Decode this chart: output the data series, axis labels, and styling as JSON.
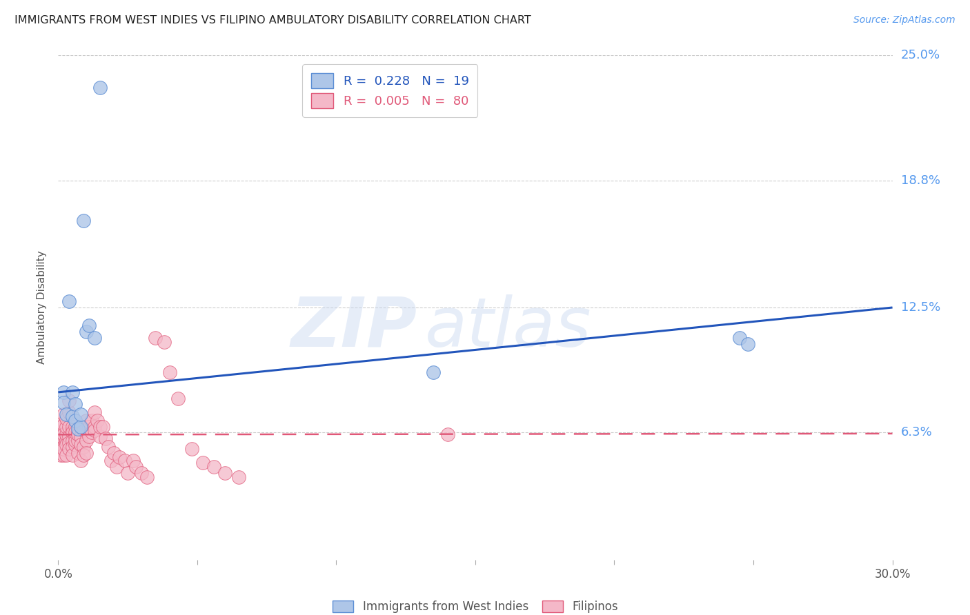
{
  "title": "IMMIGRANTS FROM WEST INDIES VS FILIPINO AMBULATORY DISABILITY CORRELATION CHART",
  "source": "Source: ZipAtlas.com",
  "ylabel": "Ambulatory Disability",
  "legend_label_blue": "Immigrants from West Indies",
  "legend_label_pink": "Filipinos",
  "legend_r_blue": "R =  0.228",
  "legend_n_blue": "N =  19",
  "legend_r_pink": "R =  0.005",
  "legend_n_pink": "N =  80",
  "xlim": [
    0.0,
    0.3
  ],
  "ylim": [
    0.0,
    0.25
  ],
  "yticks": [
    0.063,
    0.125,
    0.188,
    0.25
  ],
  "ytick_labels": [
    "6.3%",
    "12.5%",
    "18.8%",
    "25.0%"
  ],
  "xticks": [
    0.0,
    0.05,
    0.1,
    0.15,
    0.2,
    0.25,
    0.3
  ],
  "xtick_labels": [
    "0.0%",
    "",
    "",
    "",
    "",
    "",
    "30.0%"
  ],
  "watermark_zip": "ZIP",
  "watermark_atlas": "atlas",
  "blue_color": "#aec6e8",
  "blue_edge_color": "#5b8dd4",
  "pink_color": "#f4b8c8",
  "pink_edge_color": "#e05878",
  "line_blue_color": "#2255bb",
  "line_pink_color": "#e05878",
  "blue_x": [
    0.002,
    0.002,
    0.003,
    0.004,
    0.005,
    0.005,
    0.006,
    0.006,
    0.007,
    0.008,
    0.008,
    0.009,
    0.01,
    0.011,
    0.013,
    0.015,
    0.245,
    0.248,
    0.135
  ],
  "blue_y": [
    0.083,
    0.078,
    0.072,
    0.128,
    0.083,
    0.071,
    0.069,
    0.077,
    0.065,
    0.066,
    0.072,
    0.168,
    0.113,
    0.116,
    0.11,
    0.234,
    0.11,
    0.107,
    0.093
  ],
  "pink_x": [
    0.001,
    0.001,
    0.001,
    0.001,
    0.002,
    0.002,
    0.002,
    0.002,
    0.002,
    0.002,
    0.002,
    0.003,
    0.003,
    0.003,
    0.003,
    0.003,
    0.003,
    0.004,
    0.004,
    0.004,
    0.004,
    0.004,
    0.004,
    0.005,
    0.005,
    0.005,
    0.005,
    0.005,
    0.005,
    0.006,
    0.006,
    0.006,
    0.006,
    0.006,
    0.007,
    0.007,
    0.007,
    0.007,
    0.008,
    0.008,
    0.008,
    0.009,
    0.009,
    0.009,
    0.01,
    0.01,
    0.01,
    0.011,
    0.011,
    0.012,
    0.012,
    0.013,
    0.013,
    0.013,
    0.014,
    0.015,
    0.015,
    0.016,
    0.017,
    0.018,
    0.019,
    0.02,
    0.021,
    0.022,
    0.024,
    0.025,
    0.027,
    0.028,
    0.03,
    0.032,
    0.035,
    0.038,
    0.04,
    0.043,
    0.048,
    0.052,
    0.056,
    0.06,
    0.065,
    0.14
  ],
  "pink_y": [
    0.058,
    0.062,
    0.066,
    0.052,
    0.06,
    0.056,
    0.052,
    0.067,
    0.062,
    0.072,
    0.055,
    0.059,
    0.062,
    0.066,
    0.07,
    0.057,
    0.052,
    0.061,
    0.066,
    0.058,
    0.073,
    0.079,
    0.055,
    0.064,
    0.066,
    0.063,
    0.059,
    0.056,
    0.052,
    0.061,
    0.057,
    0.066,
    0.059,
    0.063,
    0.059,
    0.063,
    0.053,
    0.062,
    0.061,
    0.049,
    0.057,
    0.056,
    0.064,
    0.052,
    0.069,
    0.059,
    0.053,
    0.066,
    0.061,
    0.069,
    0.063,
    0.073,
    0.066,
    0.064,
    0.069,
    0.061,
    0.066,
    0.066,
    0.06,
    0.056,
    0.049,
    0.053,
    0.046,
    0.051,
    0.049,
    0.043,
    0.049,
    0.046,
    0.043,
    0.041,
    0.11,
    0.108,
    0.093,
    0.08,
    0.055,
    0.048,
    0.046,
    0.043,
    0.041,
    0.062
  ],
  "blue_line_x0": 0.0,
  "blue_line_x1": 0.3,
  "blue_line_y0": 0.083,
  "blue_line_y1": 0.125,
  "pink_line_x0": 0.0,
  "pink_line_x1": 0.3,
  "pink_line_y0": 0.062,
  "pink_line_y1": 0.0625,
  "background_color": "#ffffff",
  "grid_color": "#cccccc",
  "title_color": "#222222",
  "axis_label_color": "#555555",
  "right_label_color": "#5599ee"
}
